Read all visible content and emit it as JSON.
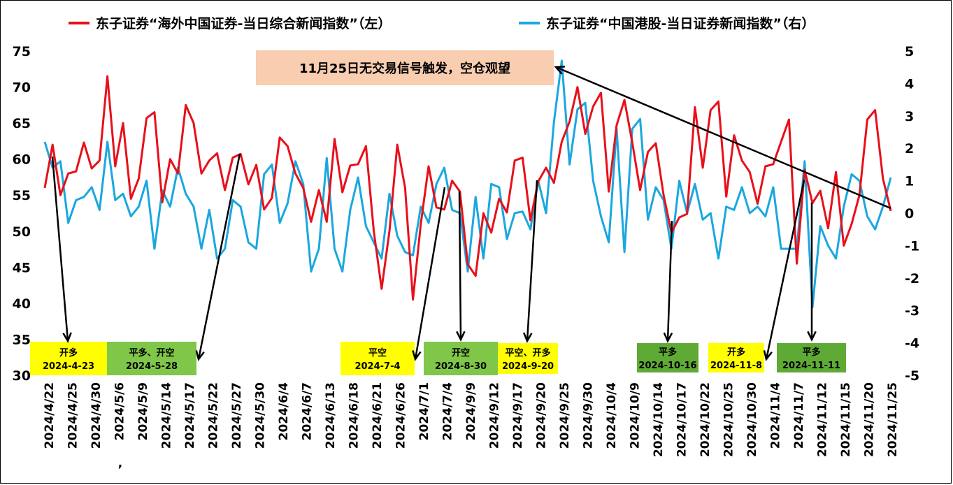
{
  "chart_data": {
    "type": "line",
    "legend": {
      "left_series": "东子证券“海外中国证券-当日综合新闻指数”（左）",
      "right_series": "东子证券“中国港股-当日证券新闻指数”（右）",
      "placement": "top"
    },
    "colors": {
      "left_series": "#e8101a",
      "right_series": "#1aa7e0",
      "callout_bg": "#f8cdb0",
      "tag_yellow": "#ffff00",
      "tag_green_light": "#7fc649",
      "tag_green_dark": "#5faa35"
    },
    "y_left": {
      "min": 30,
      "max": 75,
      "ticks": [
        "30",
        "35",
        "40",
        "45",
        "50",
        "55",
        "60",
        "65",
        "70",
        "75"
      ]
    },
    "y_right": {
      "min": -5,
      "max": 5,
      "ticks": [
        "-5",
        "-4",
        "-3",
        "-2",
        "-1",
        "0",
        "1",
        "2",
        "3",
        "4",
        "5"
      ]
    },
    "grid": false,
    "x_tick_labels": [
      "2024/4/22",
      "2024/4/25",
      "2024/4/30",
      "2024/5/6",
      "2024/5/9",
      "2024/5/14",
      "2024/5/17",
      "2024/5/22",
      "2024/5/27",
      "2024/5/30",
      "2024/6/4",
      "2024/6/7",
      "2024/6/13",
      "2024/6/18",
      "2024/6/21",
      "2024/6/26",
      "2024/7/1",
      "2024/7/4",
      "2024/9/9",
      "2024/9/12",
      "2024/9/17",
      "2024/9/20",
      "2024/9/25",
      "2024/9/30",
      "2024/10/4",
      "2024/10/9",
      "2024/10/14",
      "2024/10/17",
      "2024/10/22",
      "2024/10/25",
      "2024/10/30",
      "2024/11/4",
      "2024/11/7",
      "2024/11/12",
      "2024/11/15",
      "2024/11/20",
      "2024/11/25"
    ],
    "stray_mark": ",",
    "left_values": [
      56,
      62,
      55,
      58,
      58.3,
      62.3,
      58.7,
      59.8,
      71.5,
      59,
      65,
      54.5,
      57.3,
      65.7,
      66.5,
      54,
      60,
      58,
      67.5,
      65,
      58,
      59.8,
      60.8,
      55.7,
      60.2,
      60.7,
      56.5,
      59.2,
      53,
      54.6,
      63,
      61.8,
      58,
      56,
      51.3,
      55.7,
      51.3,
      62.8,
      55.4,
      59.1,
      59.3,
      61.8,
      50,
      42,
      50,
      62,
      56,
      40.5,
      51,
      59,
      53.3,
      53,
      57,
      55.5,
      45.4,
      43.8,
      52.5,
      49.8,
      54.5,
      52.6,
      59.8,
      60.2,
      51.5,
      56.9,
      58.8,
      56.7,
      62.4,
      65.2,
      70,
      63.5,
      67.3,
      69.2,
      55.5,
      64.7,
      68.2,
      62.3,
      55.7,
      61,
      62.2,
      55,
      49.8,
      51.9,
      52.4,
      67.2,
      58.8,
      66.8,
      68,
      54.8,
      63.3,
      59.8,
      58.2,
      53.8,
      59,
      59.3,
      62.4,
      65.5,
      45.5,
      58.5,
      53.9,
      55.6,
      50.4,
      58.2,
      48,
      51,
      55,
      65.5,
      66.8,
      57.3,
      52.8
    ],
    "right_values": [
      2.2,
      1.4,
      1.6,
      -0.3,
      0.4,
      0.5,
      0.8,
      0.1,
      2.2,
      0.4,
      0.6,
      -0.1,
      0.2,
      1,
      -1.1,
      0.7,
      0.2,
      1.4,
      0.6,
      0.2,
      -1.1,
      0.1,
      -1.4,
      -1.1,
      0.4,
      0.2,
      -0.9,
      -1.1,
      1.2,
      1.5,
      -0.3,
      0.3,
      1.6,
      0.9,
      -1.8,
      -1.1,
      1.7,
      -1.1,
      -1.8,
      0.1,
      1.1,
      -0.4,
      -0.9,
      -1.4,
      0.6,
      -0.7,
      -1.2,
      -1.3,
      0.2,
      -0.3,
      0.9,
      1.4,
      0.1,
      0,
      -1.8,
      0.5,
      -1.4,
      0.9,
      0.8,
      -0.8,
      0,
      0.05,
      -0.5,
      1,
      0,
      2.8,
      4.7,
      1.5,
      3.2,
      3.4,
      1,
      -0.1,
      -0.9,
      2.6,
      -1.2,
      2.6,
      2.9,
      -0.2,
      0.8,
      0.4,
      -1.1,
      1,
      0,
      0.9,
      -0.2,
      0,
      -1.4,
      0.2,
      0.1,
      0.8,
      0,
      0.2,
      -0.1,
      0.8,
      -1.1,
      -1.1,
      -1.1,
      1.6,
      -2.9,
      -0.4,
      -1,
      -1.4,
      0.2,
      1.2,
      1.0,
      -0.1,
      -0.5,
      0.2,
      1.1
    ]
  },
  "callout": {
    "text": "11月25日无交易信号触发，空仓观望"
  },
  "annotations": [
    {
      "id": "a1",
      "line1": "开多",
      "line2": "2024-4-23",
      "style": "yellow"
    },
    {
      "id": "a2",
      "line1": "平多、开空",
      "line2": "2024-5-28",
      "style": "green_light"
    },
    {
      "id": "a3",
      "line1": "平空",
      "line2": "2024-7-4",
      "style": "yellow"
    },
    {
      "id": "a4",
      "line1": "开空",
      "line2": "2024-8-30",
      "style": "green_light"
    },
    {
      "id": "a5",
      "line1": "平空、开多",
      "line2": "2024-9-20",
      "style": "yellow"
    },
    {
      "id": "a6",
      "line1": "平多",
      "line2": "2024-10-16",
      "style": "green_dark"
    },
    {
      "id": "a7",
      "line1": "开多",
      "line2": "2024-11-8",
      "style": "yellow"
    },
    {
      "id": "a8",
      "line1": "平多",
      "line2": "2024-11-11",
      "style": "green_dark"
    }
  ]
}
